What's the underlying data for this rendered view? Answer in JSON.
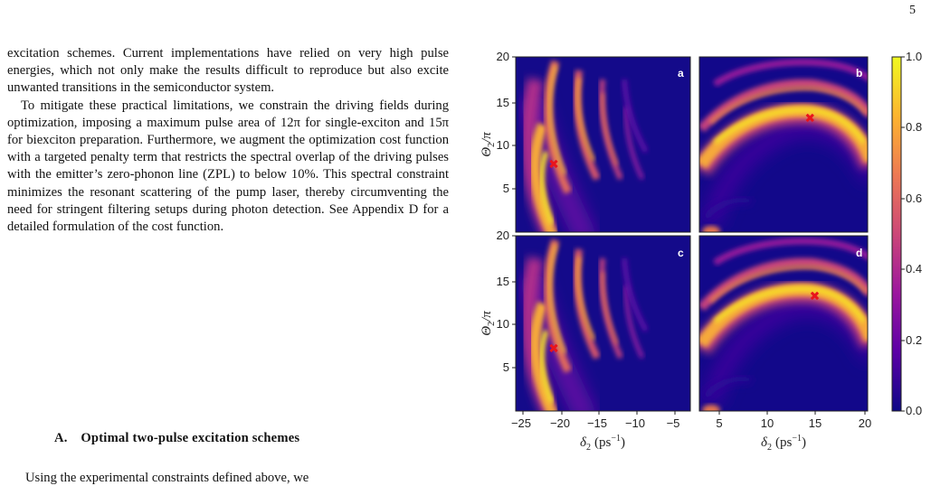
{
  "page_number": "5",
  "paragraphs": [
    "excitation schemes. Current implementations have relied on very high pulse energies, which not only make the results difficult to reproduce but also excite unwanted transitions in the semiconductor system.",
    "To mitigate these practical limitations, we constrain the driving fields during optimization, imposing a maximum pulse area of 12π for single-exciton and 15π for biexciton preparation. Furthermore, we augment the optimization cost function with a targeted penalty term that restricts the spectral overlap of the driving pulses with the emitter’s zero-phonon line (ZPL) to below 10%. This spectral constraint minimizes the resonant scattering of the pump laser, thereby circumventing the need for stringent filtering setups during photon detection. See Appendix D for a detailed formulation of the cost function."
  ],
  "section_heading": "A. Optimal two-pulse excitation schemes",
  "cutoff_line": "Using the experimental constraints defined above, we",
  "figure": {
    "colormap": [
      "#0d0887",
      "#5c01a6",
      "#9c179e",
      "#cc4778",
      "#ed7953",
      "#fdb42f",
      "#f0f921"
    ],
    "marker_color": "#e8141c",
    "colorbar": {
      "range": [
        0.0,
        1.0
      ],
      "tick_labels": [
        "0.0",
        "0.2",
        "0.4",
        "0.6",
        "0.8",
        "1.0"
      ]
    },
    "axes": {
      "ylabel_symbol": "Θ",
      "ylabel_sub": "2",
      "ylabel_rest": "/π",
      "xlabel_symbol": "δ",
      "xlabel_sub": "2",
      "xlabel_unit": "(ps",
      "xlabel_exp": "−1",
      "xlabel_close": ")",
      "y_ticks": [
        "20",
        "15",
        "10",
        "5"
      ],
      "y_ticks_lower": [
        "20",
        "15",
        "10",
        "5"
      ],
      "x_ticks_left": [
        "−25",
        "−20",
        "−15",
        "−10",
        "−5"
      ],
      "x_ticks_right": [
        "5",
        "10",
        "15",
        "20"
      ]
    },
    "panels": [
      {
        "label": "a",
        "x_range": [
          -25,
          -2
        ],
        "y_range": [
          1,
          20
        ],
        "marker": {
          "x": -20,
          "y": 8.4
        }
      },
      {
        "label": "b",
        "x_range": [
          2.5,
          20
        ],
        "y_range": [
          1,
          20
        ],
        "marker": {
          "x": 14,
          "y": 13.4
        }
      },
      {
        "label": "c",
        "x_range": [
          -25,
          -2
        ],
        "y_range": [
          1,
          20
        ],
        "marker": {
          "x": -20,
          "y": 7.8
        }
      },
      {
        "label": "d",
        "x_range": [
          2.5,
          20
        ],
        "y_range": [
          1,
          20
        ],
        "marker": {
          "x": 14.5,
          "y": 13.5
        }
      }
    ]
  }
}
